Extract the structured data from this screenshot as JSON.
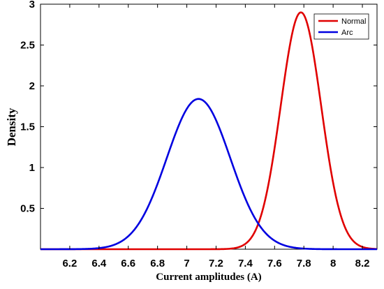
{
  "chart_data": {
    "type": "line",
    "title": "",
    "xlabel": "Current amplitudes (A)",
    "ylabel": "Density",
    "xlim": [
      6.0,
      8.3
    ],
    "ylim": [
      0,
      3
    ],
    "xticks": [
      6.2,
      6.4,
      6.6,
      6.8,
      7,
      7.2,
      7.4,
      7.6,
      7.8,
      8,
      8.2
    ],
    "yticks": [
      0.5,
      1,
      1.5,
      2,
      2.5,
      3
    ],
    "xtick_labels": [
      "6.2",
      "6.4",
      "6.6",
      "6.8",
      "7",
      "7.2",
      "7.4",
      "7.6",
      "7.8",
      "8",
      "8.2"
    ],
    "ytick_labels": [
      "0.5",
      "1",
      "1.5",
      "2",
      "2.5",
      "3"
    ],
    "grid": false,
    "legend_position": "top-right",
    "series": [
      {
        "name": "Normal",
        "color": "#e00000",
        "distribution": "normal",
        "mean": 7.78,
        "std": 0.138,
        "peak_density": 2.9
      },
      {
        "name": "Arc",
        "color": "#0000e0",
        "distribution": "normal",
        "mean": 7.08,
        "std": 0.217,
        "peak_density": 1.84
      }
    ]
  }
}
